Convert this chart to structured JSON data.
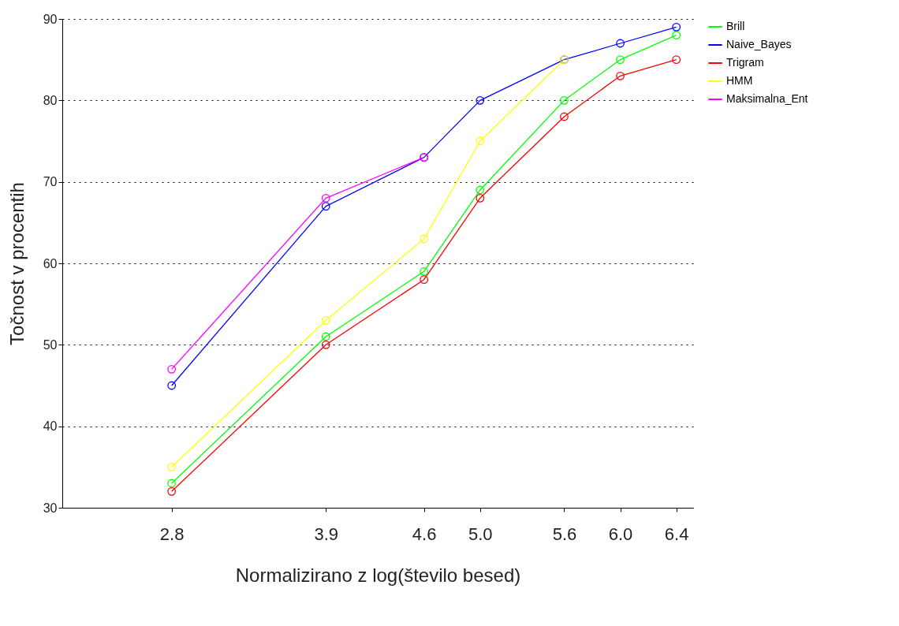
{
  "chart_data": {
    "type": "line",
    "xlabel": "Normalizirano z log(število besed)",
    "ylabel": "Točnost v procentih",
    "x": [
      2.8,
      3.9,
      4.6,
      5.0,
      5.6,
      6.0,
      6.4
    ],
    "xlim": [
      2.02,
      6.52
    ],
    "xticks": [
      {
        "value": 2.8,
        "label": "2.8"
      },
      {
        "value": 3.9,
        "label": "3.9"
      },
      {
        "value": 4.6,
        "label": "4.6"
      },
      {
        "value": 5.0,
        "label": "5.0"
      },
      {
        "value": 5.6,
        "label": "5.6"
      },
      {
        "value": 6.0,
        "label": "6.0"
      },
      {
        "value": 6.4,
        "label": "6.4"
      }
    ],
    "ylim": [
      30,
      90
    ],
    "yticks": [
      30,
      40,
      50,
      60,
      70,
      80,
      90
    ],
    "series": [
      {
        "name": "Brill",
        "color": "#00ff00",
        "values": [
          33,
          51,
          59,
          69,
          80,
          85,
          88
        ]
      },
      {
        "name": "Naive_Bayes",
        "color": "#0000ff",
        "values": [
          45,
          67,
          73,
          80,
          85,
          87,
          89
        ]
      },
      {
        "name": "Trigram",
        "color": "#ff0000",
        "values": [
          32,
          50,
          58,
          68,
          78,
          83,
          85
        ]
      },
      {
        "name": "HMM",
        "color": "#ffff00",
        "values": [
          35,
          53,
          63,
          75,
          85,
          null,
          null
        ]
      },
      {
        "name": "Maksimalna_Ent",
        "color": "#ff00ff",
        "values": [
          47,
          68,
          73,
          null,
          null,
          null,
          null
        ]
      }
    ],
    "grid": "y",
    "legend": "top right",
    "marker": "circle",
    "line_style": "solid"
  }
}
